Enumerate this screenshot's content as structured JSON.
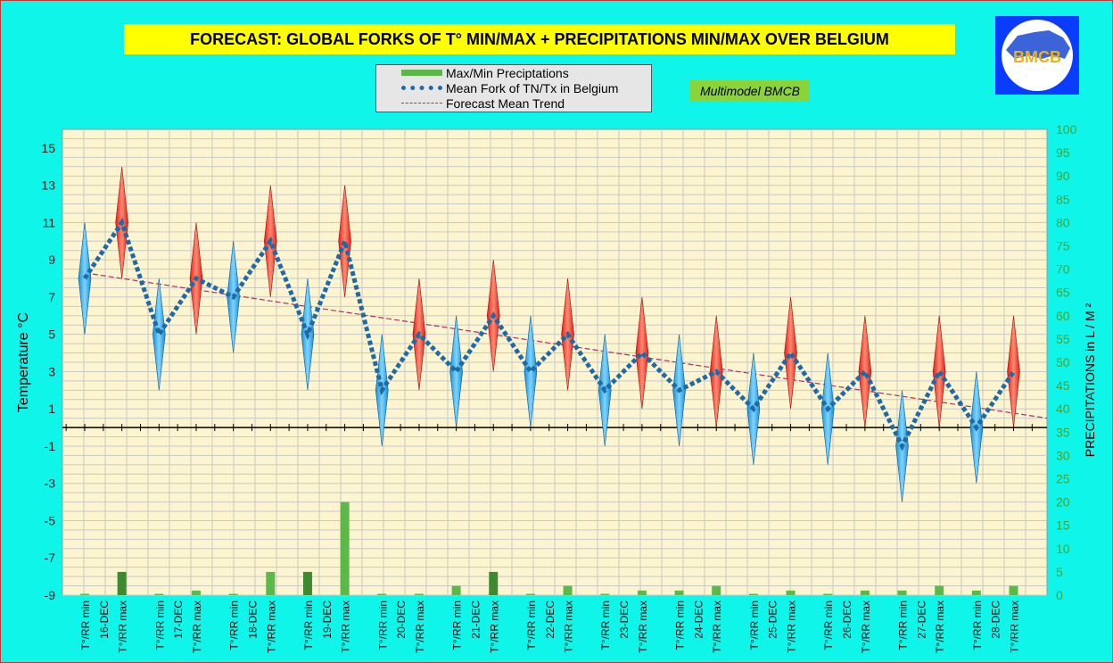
{
  "title": "FORECAST: GLOBAL FORKS OF T° MIN/MAX + PRECIPITATIONS MIN/MAX OVER  BELGIUM",
  "badge": "Multimodel BMCB",
  "logo_text": "BMCB",
  "legend": {
    "precip": "Max/Min Preciptations",
    "mean": "Mean Fork of TN/Tx in Belgium",
    "trend": "Forecast Mean Trend"
  },
  "colors": {
    "background": "#0ff5ea",
    "plot": "#fdf5cf",
    "title_bg": "#ffff00",
    "max_spike": "#e0201a",
    "min_spike": "#1a8fd0",
    "mean_line": "#1f6aa5",
    "trend_line": "#b0306a",
    "bars": "#5cb848",
    "bars_dark": "#3f8a30",
    "right_axis": "#4aa02c"
  },
  "chart_data": {
    "type": "line",
    "title": "FORECAST: GLOBAL FORKS OF T° MIN/MAX + PRECIPITATIONS MIN/MAX OVER  BELGIUM",
    "ylabel": "Temperature  °C",
    "y2label": "PRECIPITATIONS in L / M ²",
    "ylim": [
      -9,
      16
    ],
    "y2lim": [
      0,
      100
    ],
    "yticks": [
      15,
      13,
      11,
      9,
      7,
      5,
      3,
      1,
      -1,
      -3,
      -5,
      -7,
      -9
    ],
    "y2ticks": [
      100,
      95,
      90,
      85,
      80,
      75,
      70,
      65,
      60,
      55,
      50,
      45,
      40,
      35,
      30,
      25,
      20,
      15,
      10,
      5,
      0
    ],
    "grid": true,
    "categories": [
      "T°/RR min",
      "T°/RR max",
      "T°/RR min",
      "T°/RR max",
      "T°/RR min",
      "T°/RR max",
      "T°/RR min",
      "T°/RR max",
      "T°/RR min",
      "T°/RR max",
      "T°/RR min",
      "T°/RR max",
      "T°/RR min",
      "T°/RR max",
      "T°/RR min",
      "T°/RR max",
      "T°/RR min",
      "T°/RR max",
      "T°/RR min",
      "T°/RR max",
      "T°/RR min",
      "T°/RR max",
      "T°/RR min",
      "T°/RR max",
      "T°/RR min",
      "T°/RR max"
    ],
    "date_labels": [
      "16-DEC",
      "17-DEC",
      "18-DEC",
      "19-DEC",
      "20-DEC",
      "21-DEC",
      "22-DEC",
      "23-DEC",
      "24-DEC",
      "25-DEC",
      "26-DEC",
      "27-DEC",
      "28-DEC"
    ],
    "spikes": [
      {
        "kind": "min",
        "low": 5,
        "high": 11,
        "mean": 8
      },
      {
        "kind": "max",
        "low": 8,
        "high": 14,
        "mean": 11
      },
      {
        "kind": "min",
        "low": 2,
        "high": 8,
        "mean": 5
      },
      {
        "kind": "max",
        "low": 5,
        "high": 11,
        "mean": 8
      },
      {
        "kind": "min",
        "low": 4,
        "high": 10,
        "mean": 7
      },
      {
        "kind": "max",
        "low": 7,
        "high": 13,
        "mean": 10
      },
      {
        "kind": "min",
        "low": 2,
        "high": 8,
        "mean": 5
      },
      {
        "kind": "max",
        "low": 7,
        "high": 13,
        "mean": 10
      },
      {
        "kind": "min",
        "low": -1,
        "high": 5,
        "mean": 2
      },
      {
        "kind": "max",
        "low": 2,
        "high": 8,
        "mean": 5
      },
      {
        "kind": "min",
        "low": 0,
        "high": 6,
        "mean": 3
      },
      {
        "kind": "max",
        "low": 3,
        "high": 9,
        "mean": 6
      },
      {
        "kind": "min",
        "low": 0,
        "high": 6,
        "mean": 3
      },
      {
        "kind": "max",
        "low": 2,
        "high": 8,
        "mean": 5
      },
      {
        "kind": "min",
        "low": -1,
        "high": 5,
        "mean": 2
      },
      {
        "kind": "max",
        "low": 1,
        "high": 7,
        "mean": 4
      },
      {
        "kind": "min",
        "low": -1,
        "high": 5,
        "mean": 2
      },
      {
        "kind": "max",
        "low": 0,
        "high": 6,
        "mean": 3
      },
      {
        "kind": "min",
        "low": -2,
        "high": 4,
        "mean": 1
      },
      {
        "kind": "max",
        "low": 1,
        "high": 7,
        "mean": 4
      },
      {
        "kind": "min",
        "low": -2,
        "high": 4,
        "mean": 1
      },
      {
        "kind": "max",
        "low": 0,
        "high": 6,
        "mean": 3
      },
      {
        "kind": "min",
        "low": -4,
        "high": 2,
        "mean": -1
      },
      {
        "kind": "max",
        "low": 0,
        "high": 6,
        "mean": 3
      },
      {
        "kind": "min",
        "low": -3,
        "high": 3,
        "mean": 0
      },
      {
        "kind": "max",
        "low": 0,
        "high": 6,
        "mean": 3
      }
    ],
    "precipitation": [
      0,
      5,
      0,
      1,
      0,
      5,
      5,
      20,
      0,
      0,
      2,
      5,
      0,
      2,
      0,
      1,
      1,
      2,
      0,
      1,
      0,
      1,
      1,
      2,
      1,
      2
    ],
    "trend": {
      "start": 8.3,
      "end": 0.5
    },
    "series": [
      {
        "name": "Max/Min Preciptations"
      },
      {
        "name": "Mean Fork of TN/Tx in Belgium"
      },
      {
        "name": "Forecast Mean Trend"
      }
    ]
  }
}
